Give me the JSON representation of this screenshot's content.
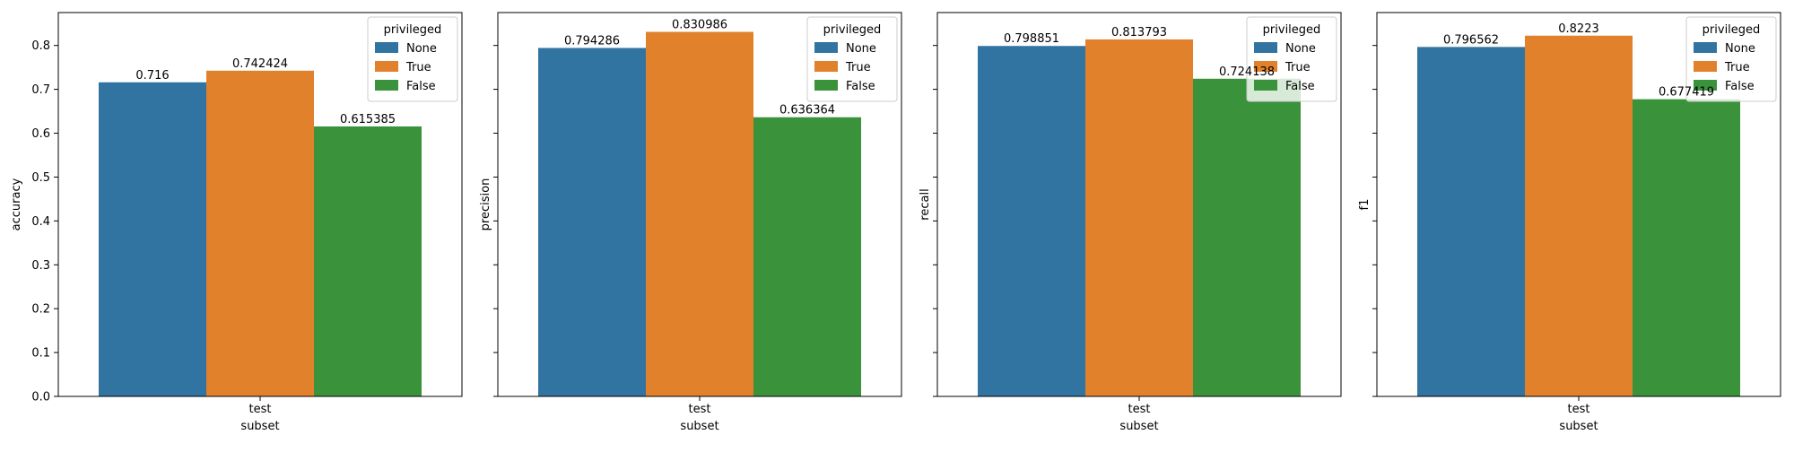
{
  "chart_data": [
    {
      "type": "bar",
      "categories": [
        "test"
      ],
      "xlabel": "subset",
      "ylabel": "accuracy",
      "ylim": [
        0,
        0.875
      ],
      "yticks": [
        "0.0",
        "0.1",
        "0.2",
        "0.3",
        "0.4",
        "0.5",
        "0.6",
        "0.7",
        "0.8"
      ],
      "show_ytick_labels": true,
      "legend": {
        "title": "privileged",
        "placement": "top-right"
      },
      "series": [
        {
          "name": "None",
          "values": [
            0.716
          ],
          "label": "0.716"
        },
        {
          "name": "True",
          "values": [
            0.742424
          ],
          "label": "0.742424"
        },
        {
          "name": "False",
          "values": [
            0.615385
          ],
          "label": "0.615385"
        }
      ]
    },
    {
      "type": "bar",
      "categories": [
        "test"
      ],
      "xlabel": "subset",
      "ylabel": "precision",
      "ylim": [
        0,
        0.875
      ],
      "yticks": [
        "0.0",
        "0.1",
        "0.2",
        "0.3",
        "0.4",
        "0.5",
        "0.6",
        "0.7",
        "0.8"
      ],
      "show_ytick_labels": false,
      "legend": {
        "title": "privileged",
        "placement": "top-right"
      },
      "series": [
        {
          "name": "None",
          "values": [
            0.794286
          ],
          "label": "0.794286"
        },
        {
          "name": "True",
          "values": [
            0.830986
          ],
          "label": "0.830986"
        },
        {
          "name": "False",
          "values": [
            0.636364
          ],
          "label": "0.636364"
        }
      ]
    },
    {
      "type": "bar",
      "categories": [
        "test"
      ],
      "xlabel": "subset",
      "ylabel": "recall",
      "ylim": [
        0,
        0.875
      ],
      "yticks": [
        "0.0",
        "0.1",
        "0.2",
        "0.3",
        "0.4",
        "0.5",
        "0.6",
        "0.7",
        "0.8"
      ],
      "show_ytick_labels": false,
      "legend": {
        "title": "privileged",
        "placement": "top-right"
      },
      "series": [
        {
          "name": "None",
          "values": [
            0.798851
          ],
          "label": "0.798851"
        },
        {
          "name": "True",
          "values": [
            0.813793
          ],
          "label": "0.813793"
        },
        {
          "name": "False",
          "values": [
            0.724138
          ],
          "label": "0.724138"
        }
      ]
    },
    {
      "type": "bar",
      "categories": [
        "test"
      ],
      "xlabel": "subset",
      "ylabel": "f1",
      "ylim": [
        0,
        0.875
      ],
      "yticks": [
        "0.0",
        "0.1",
        "0.2",
        "0.3",
        "0.4",
        "0.5",
        "0.6",
        "0.7",
        "0.8"
      ],
      "show_ytick_labels": false,
      "legend": {
        "title": "privileged",
        "placement": "top-right"
      },
      "series": [
        {
          "name": "None",
          "values": [
            0.796562
          ],
          "label": "0.796562"
        },
        {
          "name": "True",
          "values": [
            0.8223
          ],
          "label": "0.8223"
        },
        {
          "name": "False",
          "values": [
            0.677419
          ],
          "label": "0.677419"
        }
      ]
    }
  ],
  "colors": {
    "None": "#3274a1",
    "True": "#e1812c",
    "False": "#3a923a"
  }
}
